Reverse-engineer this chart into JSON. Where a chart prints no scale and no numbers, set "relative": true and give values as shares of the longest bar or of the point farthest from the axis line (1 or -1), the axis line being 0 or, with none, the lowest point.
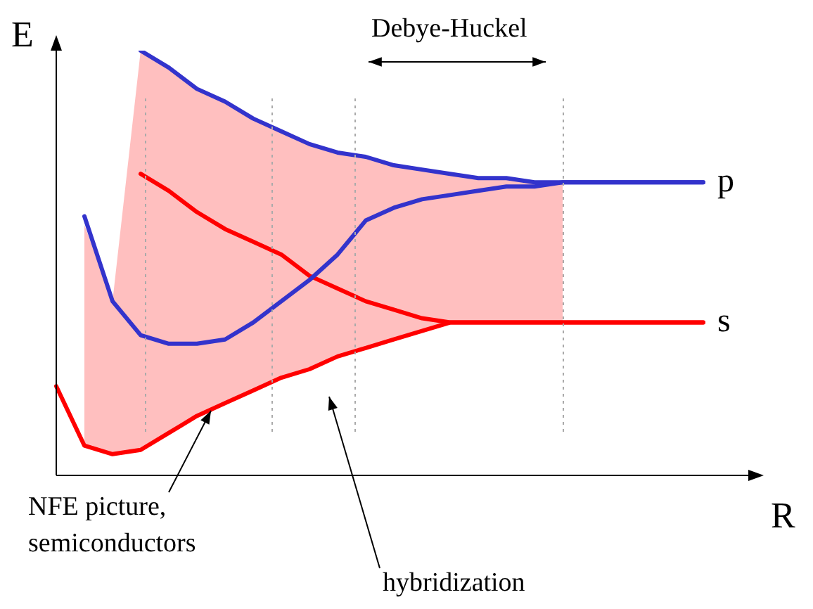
{
  "chart_data": {
    "type": "line",
    "relative": true,
    "xlabel": "R",
    "ylabel": "E",
    "line_style": "solid",
    "categories": [
      null,
      null,
      null,
      null,
      null,
      null,
      null,
      null,
      null,
      null,
      null,
      null,
      null,
      null,
      null,
      null,
      null,
      null,
      null,
      null,
      null,
      null,
      null,
      null
    ],
    "series": [
      {
        "name": "p",
        "color": "#3333cc",
        "values": [
          null,
          null,
          null,
          1.0,
          0.96,
          0.91,
          0.88,
          0.84,
          0.81,
          0.78,
          0.76,
          0.75,
          0.73,
          0.72,
          0.71,
          0.7,
          0.7,
          0.69,
          0.69,
          0.69,
          0.69,
          0.69,
          0.69,
          0.69
        ]
      },
      {
        "color": "#3333cc",
        "values": [
          null,
          0.61,
          0.41,
          0.33,
          0.31,
          0.31,
          0.32,
          0.36,
          0.41,
          0.46,
          0.52,
          0.6,
          0.63,
          0.65,
          0.66,
          0.67,
          0.68,
          0.68,
          0.69,
          0.69,
          0.69,
          0.69,
          0.69,
          0.69
        ]
      },
      {
        "name": "s",
        "color": "#ff0000",
        "values": [
          null,
          null,
          null,
          0.71,
          0.67,
          0.62,
          0.58,
          0.55,
          0.52,
          0.47,
          0.44,
          0.41,
          0.39,
          0.37,
          0.36,
          0.36,
          0.36,
          0.36,
          0.36,
          0.36,
          0.36,
          0.36,
          0.36,
          0.36
        ]
      },
      {
        "color": "#ff0000",
        "values": [
          0.21,
          0.07,
          0.05,
          0.06,
          0.1,
          0.14,
          0.17,
          0.2,
          0.23,
          0.25,
          0.28,
          0.3,
          0.32,
          0.34,
          0.36,
          0.36,
          0.36,
          0.36,
          0.36,
          0.36,
          0.36,
          0.36,
          0.36,
          0.36
        ],
        "lower": [
          null,
          0.07,
          0.05,
          0.06,
          0.1,
          0.14,
          0.17,
          0.2,
          0.23,
          0.25,
          0.28,
          0.3,
          0.32,
          0.34,
          0.36,
          0.36,
          0.36,
          0.36,
          0.36,
          null,
          null,
          null,
          null,
          null
        ],
        "upper": [
          null,
          0.59,
          0.41,
          1.0,
          0.96,
          0.91,
          0.88,
          0.84,
          0.81,
          0.78,
          0.76,
          0.75,
          0.73,
          0.72,
          0.71,
          0.7,
          0.7,
          0.69,
          0.69,
          null,
          null,
          null,
          null,
          null
        ]
      }
    ],
    "annotations": [
      "Debye-Huckel",
      "NFE picture, semiconductors",
      "hybridization"
    ]
  }
}
